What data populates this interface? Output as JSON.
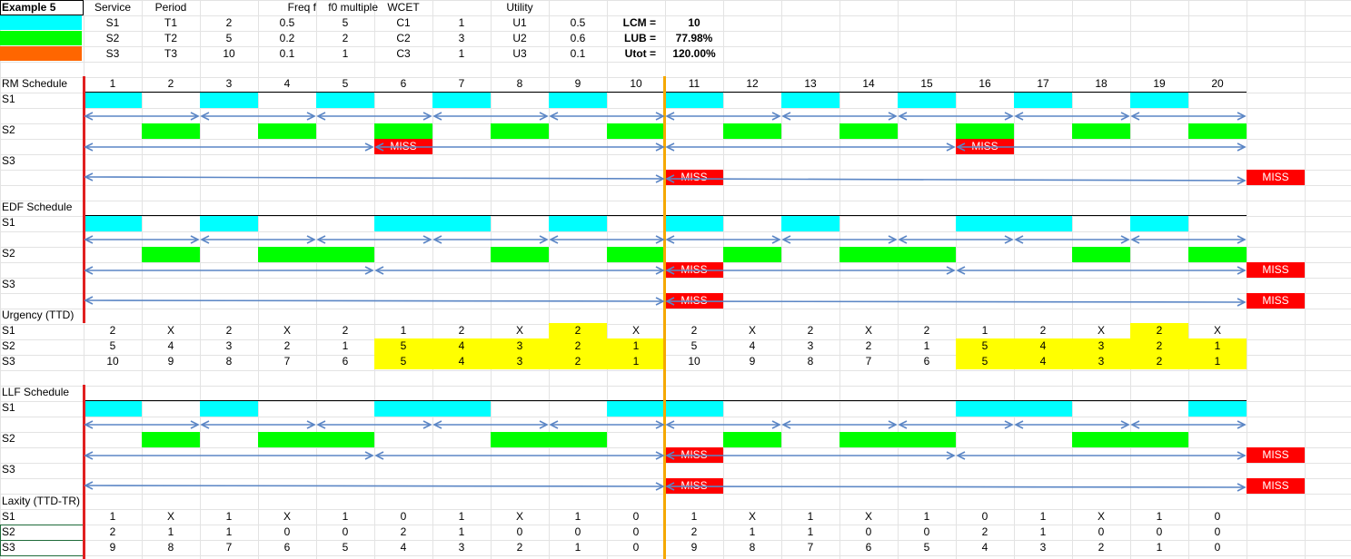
{
  "example_title": "Example 5",
  "params": {
    "headers": [
      "Service",
      "Period",
      "",
      "Freq f",
      "f0 multiple",
      "WCET",
      "",
      "Utility",
      ""
    ],
    "rows": [
      {
        "color": "#00ffff",
        "service": "S1",
        "period": "T1",
        "period_val": "2",
        "freq": "0.5",
        "mult": "5",
        "wcet": "C1",
        "wcet_val": "1",
        "util": "U1",
        "util_val": "0.5"
      },
      {
        "color": "#00ff00",
        "service": "S2",
        "period": "T2",
        "period_val": "5",
        "freq": "0.2",
        "mult": "2",
        "wcet": "C2",
        "wcet_val": "3",
        "util": "U2",
        "util_val": "0.6"
      },
      {
        "color": "#ff6600",
        "service": "S3",
        "period": "T3",
        "period_val": "10",
        "freq": "0.1",
        "mult": "1",
        "wcet": "C3",
        "wcet_val": "1",
        "util": "U3",
        "util_val": "0.1"
      }
    ],
    "lcm_label": "LCM =",
    "lcm": "10",
    "lub_label": "LUB =",
    "lub": "77.98%",
    "utot_label": "Utot =",
    "utot": "120.00%"
  },
  "time_slots": [
    "1",
    "2",
    "3",
    "4",
    "5",
    "6",
    "7",
    "8",
    "9",
    "10",
    "11",
    "12",
    "13",
    "14",
    "15",
    "16",
    "17",
    "18",
    "19",
    "20"
  ],
  "colors": {
    "s1": "#00ffff",
    "s2": "#00ff00",
    "miss": "#ff0000",
    "highlight": "#ffff00",
    "arrow": "#5b86c5",
    "red_line": "#e02020",
    "orange_line": "#f5a800"
  },
  "miss_label": "MISS",
  "sections": {
    "rm": {
      "title": "RM Schedule",
      "rows": [
        "S1",
        "S2",
        "S3"
      ],
      "s1_slots": [
        1,
        3,
        5,
        7,
        9,
        11,
        13,
        15,
        17,
        19
      ],
      "s2_slots": [
        2,
        4,
        6,
        8,
        10,
        12,
        14,
        16,
        18,
        20
      ],
      "s2_miss": [
        6,
        16
      ],
      "s3_miss": [
        11,
        21
      ]
    },
    "edf": {
      "title": "EDF Schedule",
      "rows": [
        "S1",
        "S2",
        "S3"
      ],
      "s1_slots": [
        1,
        3,
        6,
        7,
        9,
        11,
        13,
        16,
        17,
        19
      ],
      "s2_slots": [
        2,
        4,
        5,
        8,
        10,
        12,
        14,
        15,
        18,
        20
      ],
      "s2_miss": [
        11,
        21
      ],
      "s3_miss": [
        11,
        21
      ]
    },
    "urgency": {
      "title": "Urgency (TTD)",
      "rows": [
        {
          "label": "S1",
          "values": [
            "2",
            "X",
            "2",
            "X",
            "2",
            "1",
            "2",
            "X",
            "2",
            "X",
            "2",
            "X",
            "2",
            "X",
            "2",
            "1",
            "2",
            "X",
            "2",
            "X"
          ]
        },
        {
          "label": "S2",
          "values": [
            "5",
            "4",
            "3",
            "2",
            "1",
            "5",
            "4",
            "3",
            "2",
            "1",
            "5",
            "4",
            "3",
            "2",
            "1",
            "5",
            "4",
            "3",
            "2",
            "1"
          ]
        },
        {
          "label": "S3",
          "values": [
            "10",
            "9",
            "8",
            "7",
            "6",
            "5",
            "4",
            "3",
            "2",
            "1",
            "10",
            "9",
            "8",
            "7",
            "6",
            "5",
            "4",
            "3",
            "2",
            "1"
          ]
        }
      ]
    },
    "llf": {
      "title": "LLF Schedule",
      "rows": [
        "S1",
        "S2",
        "S3"
      ],
      "s1_slots": [
        1,
        3,
        6,
        7,
        10,
        11,
        16,
        17,
        20
      ],
      "s2_slots": [
        2,
        4,
        5,
        8,
        9,
        12,
        14,
        15,
        18,
        19
      ],
      "s2_miss": [
        11,
        21
      ],
      "s3_miss": [
        11,
        21
      ]
    },
    "laxity": {
      "title": "Laxity (TTD-TR)",
      "rows": [
        {
          "label": "S1",
          "values": [
            "1",
            "X",
            "1",
            "X",
            "1",
            "0",
            "1",
            "X",
            "1",
            "0",
            "1",
            "X",
            "1",
            "X",
            "1",
            "0",
            "1",
            "X",
            "1",
            "0"
          ]
        },
        {
          "label": "S2",
          "values": [
            "2",
            "1",
            "1",
            "0",
            "0",
            "2",
            "1",
            "0",
            "0",
            "0",
            "2",
            "1",
            "1",
            "0",
            "0",
            "2",
            "1",
            "0",
            "0",
            "0"
          ]
        },
        {
          "label": "S3",
          "values": [
            "9",
            "8",
            "7",
            "6",
            "5",
            "4",
            "3",
            "2",
            "1",
            "0",
            "9",
            "8",
            "7",
            "6",
            "5",
            "4",
            "3",
            "2",
            "1",
            "0"
          ]
        }
      ]
    }
  }
}
